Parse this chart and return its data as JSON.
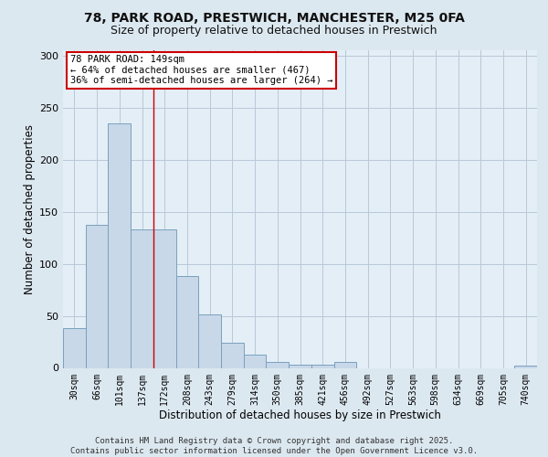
{
  "title_line1": "78, PARK ROAD, PRESTWICH, MANCHESTER, M25 0FA",
  "title_line2": "Size of property relative to detached houses in Prestwich",
  "xlabel": "Distribution of detached houses by size in Prestwich",
  "ylabel": "Number of detached properties",
  "bar_labels": [
    "30sqm",
    "66sqm",
    "101sqm",
    "137sqm",
    "172sqm",
    "208sqm",
    "243sqm",
    "279sqm",
    "314sqm",
    "350sqm",
    "385sqm",
    "421sqm",
    "456sqm",
    "492sqm",
    "527sqm",
    "563sqm",
    "598sqm",
    "634sqm",
    "669sqm",
    "705sqm",
    "740sqm"
  ],
  "bar_values": [
    38,
    137,
    235,
    133,
    133,
    88,
    51,
    24,
    13,
    6,
    3,
    3,
    6,
    0,
    0,
    0,
    0,
    0,
    0,
    0,
    2
  ],
  "bar_color": "#c8d8e8",
  "bar_edge_color": "#7aa0be",
  "grid_color": "#b8c8d8",
  "background_color": "#dce8f0",
  "plot_bg_color": "#e4eef6",
  "annotation_text": "78 PARK ROAD: 149sqm\n← 64% of detached houses are smaller (467)\n36% of semi-detached houses are larger (264) →",
  "annotation_box_color": "#ffffff",
  "annotation_border_color": "#cc0000",
  "vline_color": "#cc0000",
  "ylim": [
    0,
    305
  ],
  "yticks": [
    0,
    50,
    100,
    150,
    200,
    250,
    300
  ],
  "footer_text": "Contains HM Land Registry data © Crown copyright and database right 2025.\nContains public sector information licensed under the Open Government Licence v3.0.",
  "title_fontsize": 10,
  "subtitle_fontsize": 9,
  "axis_label_fontsize": 8.5,
  "tick_fontsize": 7,
  "annotation_fontsize": 7.5,
  "footer_fontsize": 6.5
}
